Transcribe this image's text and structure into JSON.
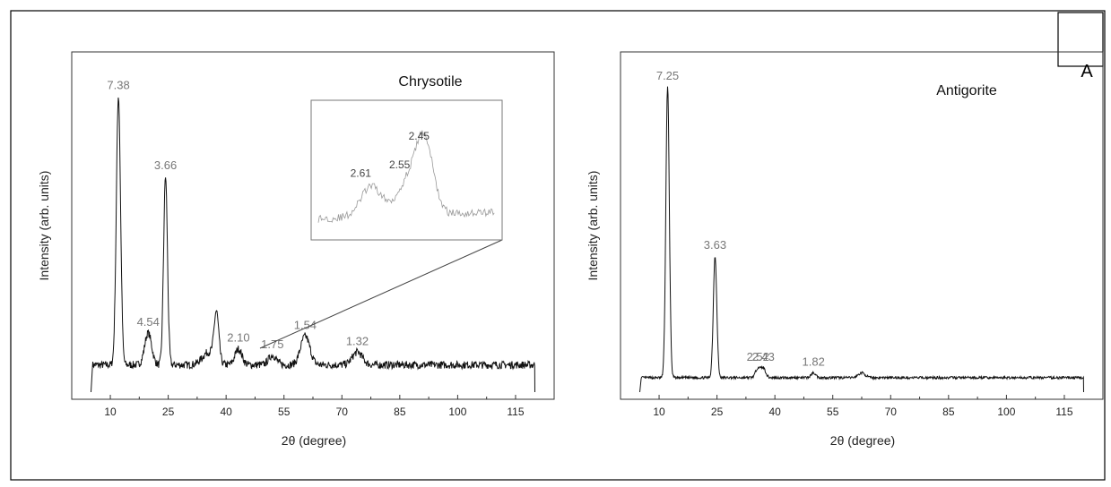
{
  "panel_letter": "A",
  "chart_data": [
    {
      "type": "line",
      "title": "Chrysotile",
      "xlabel": "2θ (degree)",
      "ylabel": "Intensity (arb. units)",
      "xlim": [
        0,
        125
      ],
      "ylim": [
        0,
        100
      ],
      "x_ticks": [
        10,
        25,
        40,
        55,
        70,
        85,
        100,
        115
      ],
      "x_tick_labels": [
        "10",
        "25",
        "40",
        "55",
        "70",
        "85",
        "100",
        "115"
      ],
      "grid": false,
      "baseline": 7.5,
      "noise": 1.2,
      "range": [
        5,
        120
      ],
      "peaks": [
        {
          "x": 12.1,
          "height": 84,
          "width": 0.55,
          "label": "7.38"
        },
        {
          "x": 19.8,
          "height": 10,
          "width": 0.9,
          "label": "4.54"
        },
        {
          "x": 24.3,
          "height": 59,
          "width": 0.5,
          "label": "3.66"
        },
        {
          "x": 35.5,
          "height": 4,
          "width": 1.6,
          "label": ""
        },
        {
          "x": 37.5,
          "height": 15,
          "width": 0.6,
          "label": ""
        },
        {
          "x": 43.2,
          "height": 5,
          "width": 0.9,
          "label": "2.10"
        },
        {
          "x": 52.0,
          "height": 3,
          "width": 1.0,
          "label": "1.75"
        },
        {
          "x": 60.5,
          "height": 9,
          "width": 1.2,
          "label": "1.54"
        },
        {
          "x": 74.0,
          "height": 4,
          "width": 1.3,
          "label": "1.32"
        }
      ],
      "inset": {
        "labels": [
          "2.61",
          "2.55",
          "2.45"
        ],
        "peaks": [
          {
            "x": 0.3,
            "height": 0.35,
            "width": 0.06
          },
          {
            "x": 0.5,
            "height": 0.35,
            "width": 0.06
          },
          {
            "x": 0.6,
            "height": 0.85,
            "width": 0.05
          }
        ]
      }
    },
    {
      "type": "line",
      "title": "Antigorite",
      "xlabel": "2θ (degree)",
      "ylabel": "Intensity (arb. units)",
      "xlim": [
        0,
        125
      ],
      "ylim": [
        0,
        100
      ],
      "x_ticks": [
        10,
        25,
        40,
        55,
        70,
        85,
        100,
        115
      ],
      "x_tick_labels": [
        "10",
        "25",
        "40",
        "55",
        "70",
        "85",
        "100",
        "115"
      ],
      "grid": false,
      "baseline": 3.5,
      "noise": 0.4,
      "range": [
        5,
        120
      ],
      "peaks": [
        {
          "x": 12.2,
          "height": 91,
          "width": 0.45,
          "label": "7.25"
        },
        {
          "x": 24.5,
          "height": 38,
          "width": 0.45,
          "label": "3.63"
        },
        {
          "x": 35.6,
          "height": 3,
          "width": 0.6,
          "label": "2.52"
        },
        {
          "x": 37.0,
          "height": 3,
          "width": 0.6,
          "label": "2.43"
        },
        {
          "x": 50.0,
          "height": 1.5,
          "width": 0.6,
          "label": "1.82"
        },
        {
          "x": 62.5,
          "height": 1.5,
          "width": 0.9,
          "label": ""
        }
      ]
    }
  ]
}
